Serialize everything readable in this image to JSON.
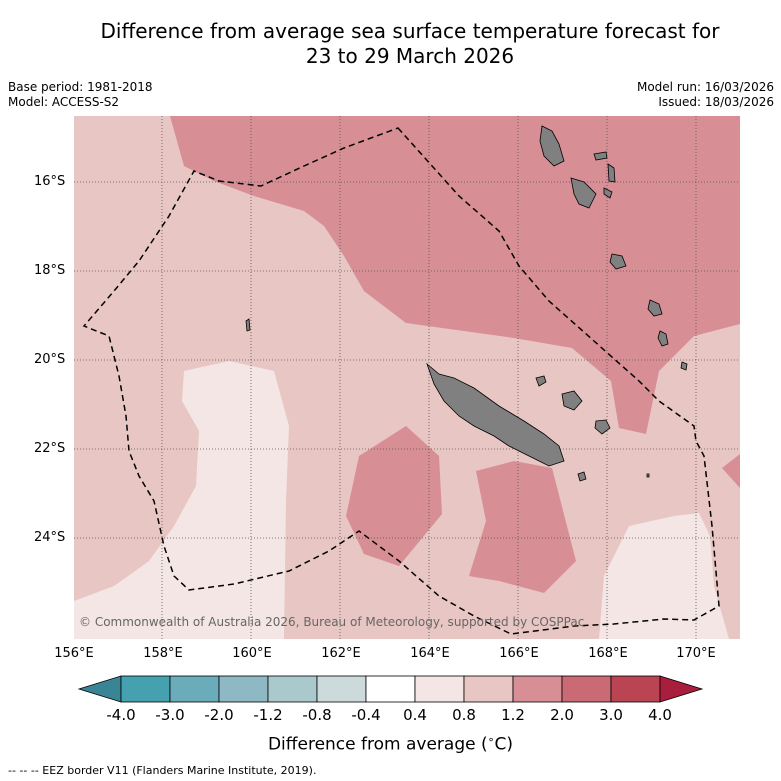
{
  "title": {
    "line1": "Difference from average sea surface temperature forecast for",
    "line2": "23 to 29 March 2026"
  },
  "meta": {
    "base_period": "Base period: 1981-2018",
    "model": "Model: ACCESS-S2",
    "model_run": "Model run: 16/03/2026",
    "issued": "Issued: 18/03/2026"
  },
  "map": {
    "lat_labels": [
      "16°S",
      "18°S",
      "20°S",
      "22°S",
      "24°S"
    ],
    "lon_labels": [
      "156°E",
      "158°E",
      "160°E",
      "162°E",
      "164°E",
      "166°E",
      "168°E",
      "170°E"
    ],
    "copyright": "© Commonwealth of Australia 2026, Bureau of Meteorology, supported by COSPPac",
    "colors": {
      "band_0_4_to_0_8": "#f4e6e4",
      "band_0_8_to_1_2": "#e8c6c3",
      "band_1_2_to_2_0": "#d78e95",
      "land": "#808080",
      "grid": "#555555"
    }
  },
  "colorbar": {
    "tick_labels": [
      "-4.0",
      "-3.0",
      "-2.0",
      "-1.2",
      "-0.8",
      "-0.4",
      "0.4",
      "0.8",
      "1.2",
      "2.0",
      "3.0",
      "4.0"
    ],
    "colors": [
      "#3a8595",
      "#45a0b0",
      "#6bacba",
      "#8eb8c4",
      "#aac9cd",
      "#cddadc",
      "#ffffff",
      "#f4e6e4",
      "#e8c6c3",
      "#d78e95",
      "#c96a74",
      "#bb4453",
      "#a91e3c"
    ],
    "title": "Difference from average ($^\\circ$C)"
  },
  "footnote": "--  --  -- EEZ border V11 (Flanders Marine Institute, 2019)."
}
